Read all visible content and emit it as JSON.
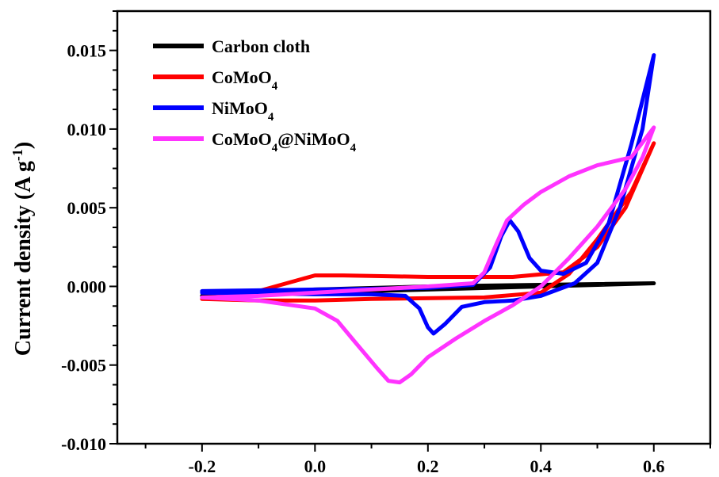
{
  "chart_data": {
    "type": "line",
    "title": "",
    "xlabel": "",
    "ylabel": "Current density (A g",
    "ylabel_sup": "-1",
    "ylabel_close": ")",
    "xlim": [
      -0.35,
      0.7
    ],
    "ylim": [
      -0.01,
      0.0175
    ],
    "x_ticks": [
      -0.2,
      0.0,
      0.2,
      0.4,
      0.6
    ],
    "x_tick_labels": [
      "-0.2",
      "0.0",
      "0.2",
      "0.4",
      "0.6"
    ],
    "y_ticks": [
      -0.01,
      -0.005,
      0.0,
      0.005,
      0.01,
      0.015
    ],
    "y_tick_labels": [
      "-0.010",
      "-0.005",
      "0.000",
      "0.005",
      "0.010",
      "0.015"
    ],
    "grid": false,
    "legend_position": "top-left",
    "series": [
      {
        "name": "Carbon cloth",
        "legend_parts": [
          {
            "t": "Carbon cloth"
          }
        ],
        "color": "#000000",
        "points": [
          [
            -0.2,
            -0.0006
          ],
          [
            0.0,
            -0.0002
          ],
          [
            0.2,
            0.0
          ],
          [
            0.4,
            0.0001
          ],
          [
            0.6,
            0.0002
          ],
          [
            0.4,
            0.0
          ],
          [
            0.2,
            -0.0002
          ],
          [
            0.0,
            -0.0004
          ],
          [
            -0.2,
            -0.0006
          ]
        ]
      },
      {
        "name": "CoMoO4",
        "legend_parts": [
          {
            "t": "CoMoO"
          },
          {
            "t": "4",
            "sub": true
          }
        ],
        "color": "#ff0000",
        "points": [
          [
            -0.2,
            -0.0008
          ],
          [
            -0.1,
            -0.0003
          ],
          [
            -0.03,
            0.0004
          ],
          [
            0.0,
            0.0007
          ],
          [
            0.05,
            0.0007
          ],
          [
            0.2,
            0.0006
          ],
          [
            0.35,
            0.0006
          ],
          [
            0.44,
            0.0009
          ],
          [
            0.5,
            0.0025
          ],
          [
            0.55,
            0.005
          ],
          [
            0.6,
            0.0091
          ],
          [
            0.56,
            0.006
          ],
          [
            0.5,
            0.003
          ],
          [
            0.45,
            0.0008
          ],
          [
            0.4,
            -0.0004
          ],
          [
            0.3,
            -0.0007
          ],
          [
            0.1,
            -0.0008
          ],
          [
            0.0,
            -0.0009
          ],
          [
            -0.1,
            -0.0009
          ],
          [
            -0.2,
            -0.0008
          ]
        ]
      },
      {
        "name": "NiMoO4",
        "legend_parts": [
          {
            "t": "NiMoO"
          },
          {
            "t": "4",
            "sub": true
          }
        ],
        "color": "#0000ff",
        "points": [
          [
            -0.2,
            -0.0003
          ],
          [
            0.0,
            -0.0002
          ],
          [
            0.2,
            -0.0001
          ],
          [
            0.28,
            0.0001
          ],
          [
            0.31,
            0.0012
          ],
          [
            0.33,
            0.0032
          ],
          [
            0.345,
            0.0042
          ],
          [
            0.36,
            0.0035
          ],
          [
            0.38,
            0.0018
          ],
          [
            0.4,
            0.001
          ],
          [
            0.44,
            0.0008
          ],
          [
            0.48,
            0.0015
          ],
          [
            0.52,
            0.004
          ],
          [
            0.56,
            0.009
          ],
          [
            0.6,
            0.0147
          ],
          [
            0.58,
            0.01
          ],
          [
            0.54,
            0.005
          ],
          [
            0.5,
            0.0015
          ],
          [
            0.46,
            0.0002
          ],
          [
            0.4,
            -0.0006
          ],
          [
            0.35,
            -0.0009
          ],
          [
            0.3,
            -0.001
          ],
          [
            0.26,
            -0.0013
          ],
          [
            0.23,
            -0.0024
          ],
          [
            0.21,
            -0.003
          ],
          [
            0.2,
            -0.0026
          ],
          [
            0.185,
            -0.0014
          ],
          [
            0.16,
            -0.0006
          ],
          [
            0.1,
            -0.0005
          ],
          [
            0.0,
            -0.0005
          ],
          [
            -0.2,
            -0.0004
          ]
        ]
      },
      {
        "name": "CoMoO4@NiMoO4",
        "legend_parts": [
          {
            "t": "CoMoO"
          },
          {
            "t": "4",
            "sub": true
          },
          {
            "t": "@NiMoO"
          },
          {
            "t": "4",
            "sub": true
          }
        ],
        "color": "#ff33ff",
        "points": [
          [
            -0.2,
            -0.0007
          ],
          [
            -0.1,
            -0.0006
          ],
          [
            0.0,
            -0.0004
          ],
          [
            0.1,
            -0.0002
          ],
          [
            0.2,
            0.0
          ],
          [
            0.28,
            0.0002
          ],
          [
            0.3,
            0.0009
          ],
          [
            0.32,
            0.0026
          ],
          [
            0.34,
            0.0042
          ],
          [
            0.37,
            0.0052
          ],
          [
            0.4,
            0.006
          ],
          [
            0.45,
            0.007
          ],
          [
            0.5,
            0.0077
          ],
          [
            0.56,
            0.0082
          ],
          [
            0.6,
            0.0101
          ],
          [
            0.58,
            0.0082
          ],
          [
            0.55,
            0.0062
          ],
          [
            0.5,
            0.0038
          ],
          [
            0.45,
            0.0018
          ],
          [
            0.4,
            0.0
          ],
          [
            0.35,
            -0.0012
          ],
          [
            0.3,
            -0.0022
          ],
          [
            0.25,
            -0.0033
          ],
          [
            0.2,
            -0.0045
          ],
          [
            0.17,
            -0.0056
          ],
          [
            0.15,
            -0.0061
          ],
          [
            0.13,
            -0.006
          ],
          [
            0.11,
            -0.0052
          ],
          [
            0.07,
            -0.0035
          ],
          [
            0.04,
            -0.0022
          ],
          [
            0.0,
            -0.0014
          ],
          [
            -0.1,
            -0.0009
          ],
          [
            -0.2,
            -0.0007
          ]
        ]
      }
    ]
  }
}
